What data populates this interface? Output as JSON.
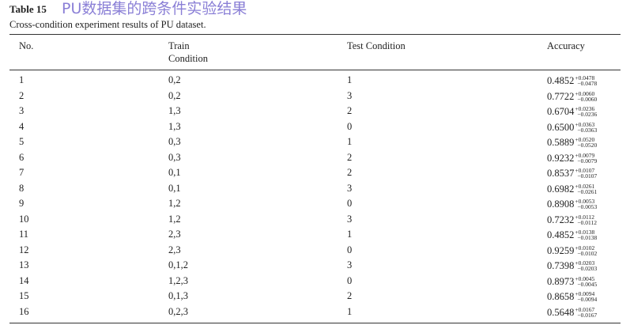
{
  "caption": {
    "label": "Table 15",
    "overlay": "PU数据集的跨条件实验结果",
    "text": "Cross-condition experiment results of PU dataset."
  },
  "table": {
    "headers": [
      "No.",
      "Train Condition",
      "Test Condition",
      "Accuracy"
    ],
    "rows": [
      [
        "1",
        "0,2",
        "1",
        "0.4852",
        "+0.0478",
        "−0.0478"
      ],
      [
        "2",
        "0,2",
        "3",
        "0.7722",
        "+0.0060",
        "−0.0060"
      ],
      [
        "3",
        "1,3",
        "2",
        "0.6704",
        "+0.0236",
        "−0.0236"
      ],
      [
        "4",
        "1,3",
        "0",
        "0.6500",
        "+0.0363",
        "−0.0363"
      ],
      [
        "5",
        "0,3",
        "1",
        "0.5889",
        "+0.0520",
        "−0.0520"
      ],
      [
        "6",
        "0,3",
        "2",
        "0.9232",
        "+0.0079",
        "−0.0079"
      ],
      [
        "7",
        "0,1",
        "2",
        "0.8537",
        "+0.0107",
        "−0.0107"
      ],
      [
        "8",
        "0,1",
        "3",
        "0.6982",
        "+0.0261",
        "−0.0261"
      ],
      [
        "9",
        "1,2",
        "0",
        "0.8908",
        "+0.0053",
        "−0.0053"
      ],
      [
        "10",
        "1,2",
        "3",
        "0.7232",
        "+0.0112",
        "−0.0112"
      ],
      [
        "11",
        "2,3",
        "1",
        "0.4852",
        "+0.0138",
        "−0.0138"
      ],
      [
        "12",
        "2,3",
        "0",
        "0.9259",
        "+0.0102",
        "−0.0102"
      ],
      [
        "13",
        "0,1,2",
        "3",
        "0.7398",
        "+0.0203",
        "−0.0203"
      ],
      [
        "14",
        "1,2,3",
        "0",
        "0.8973",
        "+0.0045",
        "−0.0045"
      ],
      [
        "15",
        "0,1,3",
        "2",
        "0.8658",
        "+0.0094",
        "−0.0094"
      ],
      [
        "16",
        "0,2,3",
        "1",
        "0.5648",
        "+0.0167",
        "−0.0167"
      ]
    ]
  }
}
